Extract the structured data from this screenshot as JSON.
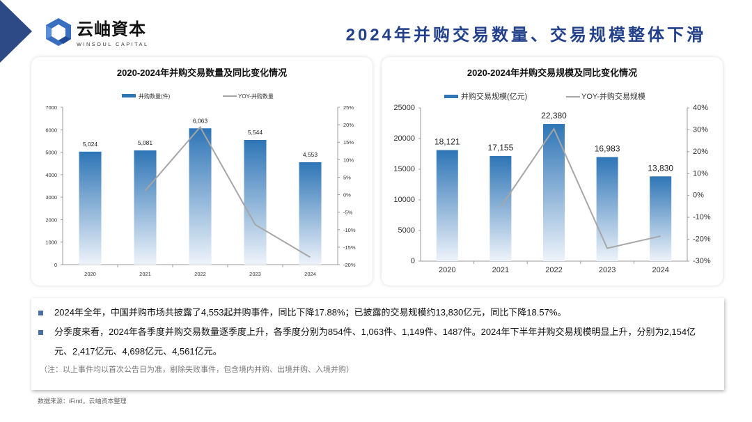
{
  "header": {
    "brand_cn": "云岫資本",
    "brand_en": "WINSOUL CAPITAL",
    "title": "2024年并购交易数量、交易规模整体下滑"
  },
  "chart_data": [
    {
      "type": "bar",
      "title": "2020-2024年并购交易数量及同比变化情况",
      "categories": [
        "2020",
        "2021",
        "2022",
        "2023",
        "2024"
      ],
      "series": [
        {
          "name": "并购数量(件)",
          "kind": "bar",
          "axis": "left",
          "values": [
            5024,
            5081,
            6063,
            5544,
            4553
          ],
          "labels": [
            "5,024",
            "5,081",
            "6,063",
            "5,544",
            "4,553"
          ]
        },
        {
          "name": "YOY-并购数量",
          "kind": "line",
          "axis": "right",
          "values": [
            null,
            1.13,
            19.33,
            -8.56,
            -17.88
          ]
        }
      ],
      "ylim": [
        0,
        7000
      ],
      "yticks": [
        "0",
        "1000",
        "2000",
        "3000",
        "4000",
        "5000",
        "6000",
        "7000"
      ],
      "y2lim": [
        -20,
        25
      ],
      "y2ticks": [
        "-20%",
        "-15%",
        "-10%",
        "-5%",
        "0%",
        "5%",
        "10%",
        "15%",
        "20%",
        "25%"
      ],
      "legend": "top"
    },
    {
      "type": "bar",
      "title": "2020-2024年并购交易规模及同比变化情况",
      "categories": [
        "2020",
        "2021",
        "2022",
        "2023",
        "2024"
      ],
      "series": [
        {
          "name": "并购交易规模(亿元)",
          "kind": "bar",
          "axis": "left",
          "values": [
            18121,
            17155,
            22380,
            16983,
            13830
          ],
          "labels": [
            "18,121",
            "17,155",
            "22,380",
            "16,983",
            "13,830"
          ]
        },
        {
          "name": "YOY-并购交易规模",
          "kind": "line",
          "axis": "right",
          "values": [
            null,
            -5.33,
            30.46,
            -24.11,
            -18.57
          ]
        }
      ],
      "ylim": [
        0,
        25000
      ],
      "yticks": [
        "0",
        "5000",
        "10000",
        "15000",
        "20000",
        "25000"
      ],
      "y2lim": [
        -30,
        40
      ],
      "y2ticks": [
        "-30%",
        "-20%",
        "-10%",
        "0%",
        "10%",
        "20%",
        "30%",
        "40%"
      ],
      "legend": "top"
    }
  ],
  "colors": {
    "bar": "#2e75b6",
    "line": "#a6a6a6",
    "title": "#22418a"
  },
  "summary": {
    "p1": "2024年全年，中国并购市场共披露了4,553起并购事件，同比下降17.88%；已披露的交易规模约13,830亿元，同比下降18.57%。",
    "p2": "分季度来看，2024年各季度并购交易数量逐季度上升，各季度分别为854件、1,063件、1,149件、1487件。2024年下半年并购交易规模明显上升，分别为2,154亿元、2,417亿元、4,698亿元、4,561亿元。",
    "note": "（注：以上事件均以首次公告日为准，剔除失败事件，包含境内并购、出境并购、入境并购）"
  },
  "source": "数据来源：iFind，云岫资本整理"
}
